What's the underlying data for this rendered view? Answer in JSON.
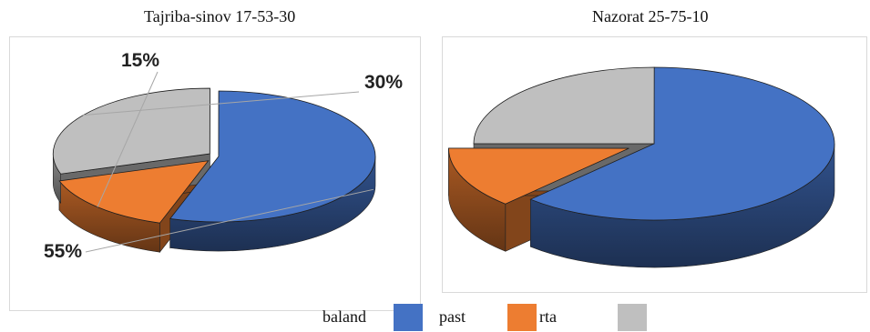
{
  "chart_data": [
    {
      "type": "pie",
      "title": "Tajriba-sinov 17-53-30",
      "categories": [
        "baland",
        "past",
        "rta"
      ],
      "values": [
        55,
        15,
        30
      ],
      "labels": [
        "55%",
        "15%",
        "30%"
      ],
      "colors": [
        "#4472C4",
        "#ED7D31",
        "#BFBFBF"
      ]
    },
    {
      "type": "pie",
      "title": "Nazorat 25-75-10",
      "categories": [
        "baland",
        "past",
        "rta"
      ],
      "values": [
        62,
        13,
        25
      ],
      "colors": [
        "#4472C4",
        "#ED7D31",
        "#BFBFBF"
      ]
    }
  ],
  "legend": {
    "items": [
      {
        "label": "baland",
        "color": "#4472C4"
      },
      {
        "label": "past",
        "color": "#ED7D31"
      },
      {
        "label": "rta",
        "color": "#BFBFBF"
      }
    ]
  }
}
